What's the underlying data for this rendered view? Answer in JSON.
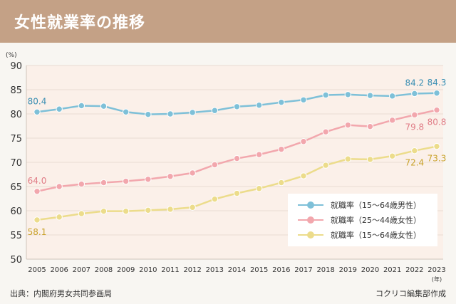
{
  "header": {
    "title": "女性就業率の推移"
  },
  "footer": {
    "source": "出典：内閣府男女共同参画局",
    "credit": "コクリコ編集部作成"
  },
  "chart_data": {
    "type": "line",
    "title": "女性就業率の推移",
    "ylabel": "(%)",
    "xlabel": "(年)",
    "ylim": [
      50,
      90
    ],
    "yticks": [
      50,
      55,
      60,
      65,
      70,
      75,
      80,
      85,
      90
    ],
    "x": [
      "2005",
      "2006",
      "2007",
      "2008",
      "2009",
      "2010",
      "2011",
      "2012",
      "2013",
      "2014",
      "2015",
      "2016",
      "2017",
      "2018",
      "2019",
      "2020",
      "2021",
      "2022",
      "2023"
    ],
    "grid": true,
    "legend_position": "bottom-right",
    "series": [
      {
        "name": "就職率（15～64歳男性）",
        "color": "#7ec0d8",
        "values": [
          80.4,
          81.0,
          81.7,
          81.6,
          80.4,
          79.9,
          80.0,
          80.3,
          80.7,
          81.5,
          81.8,
          82.4,
          82.9,
          83.9,
          84.0,
          83.8,
          83.7,
          84.2,
          84.3
        ]
      },
      {
        "name": "就職率（25～44歳女性）",
        "color": "#f2a7ad",
        "values": [
          64.0,
          65.0,
          65.5,
          65.8,
          66.1,
          66.5,
          67.1,
          67.8,
          69.5,
          70.8,
          71.6,
          72.7,
          74.3,
          76.3,
          77.7,
          77.4,
          78.7,
          79.8,
          80.8
        ]
      },
      {
        "name": "就職率（15～64歳女性）",
        "color": "#ecdc8b",
        "values": [
          58.1,
          58.7,
          59.4,
          59.9,
          59.9,
          60.1,
          60.3,
          60.7,
          62.4,
          63.6,
          64.6,
          65.8,
          67.2,
          69.4,
          70.7,
          70.6,
          71.3,
          72.4,
          73.3
        ]
      }
    ],
    "data_labels": [
      {
        "series": 0,
        "index": 0,
        "text": "80.4",
        "pos": "above"
      },
      {
        "series": 0,
        "index": 17,
        "text": "84.2",
        "pos": "above"
      },
      {
        "series": 0,
        "index": 18,
        "text": "84.3",
        "pos": "above"
      },
      {
        "series": 1,
        "index": 0,
        "text": "64.0",
        "pos": "above"
      },
      {
        "series": 1,
        "index": 17,
        "text": "79.8",
        "pos": "below"
      },
      {
        "series": 1,
        "index": 18,
        "text": "80.8",
        "pos": "below"
      },
      {
        "series": 2,
        "index": 0,
        "text": "58.1",
        "pos": "below"
      },
      {
        "series": 2,
        "index": 17,
        "text": "72.4",
        "pos": "below"
      },
      {
        "series": 2,
        "index": 18,
        "text": "73.3",
        "pos": "below"
      }
    ]
  }
}
